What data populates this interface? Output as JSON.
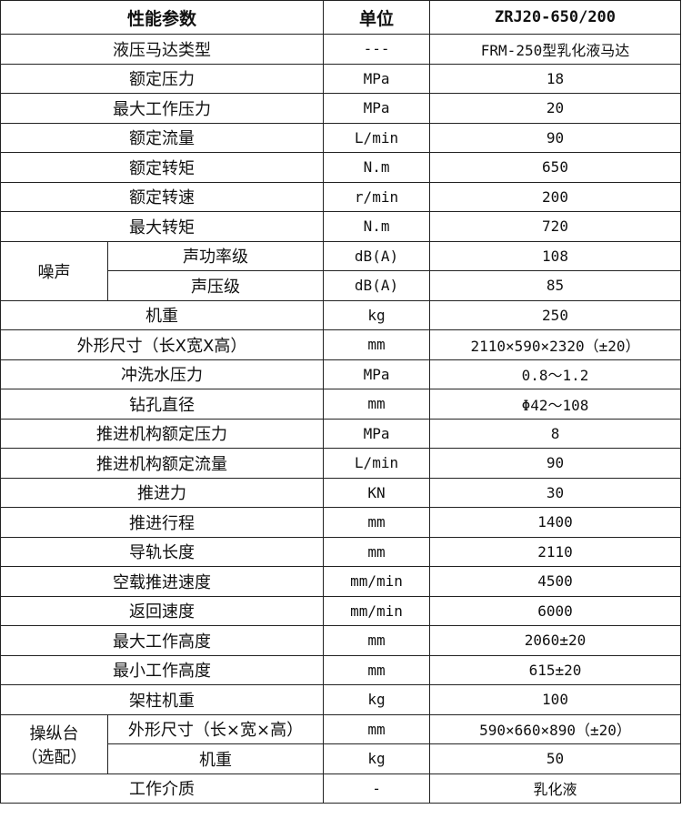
{
  "header": {
    "param": "性能参数",
    "unit": "单位",
    "model": "ZRJ20-650/200"
  },
  "rows": [
    {
      "name": "液压马达类型",
      "unit": "---",
      "value": "FRM-250型乳化液马达"
    },
    {
      "name": "额定压力",
      "unit": "MPa",
      "value": "18"
    },
    {
      "name": "最大工作压力",
      "unit": "MPa",
      "value": "20"
    },
    {
      "name": "额定流量",
      "unit": "L/min",
      "value": "90"
    },
    {
      "name": "额定转矩",
      "unit": "N.m",
      "value": "650"
    },
    {
      "name": "额定转速",
      "unit": "r/min",
      "value": "200"
    },
    {
      "name": "最大转矩",
      "unit": "N.m",
      "value": "720"
    }
  ],
  "noise": {
    "group": "噪声",
    "rows": [
      {
        "name": "声功率级",
        "unit": "dB(A)",
        "value": "108"
      },
      {
        "name": "声压级",
        "unit": "dB(A)",
        "value": "85"
      }
    ]
  },
  "rows2": [
    {
      "name": "机重",
      "unit": "kg",
      "value": "250"
    },
    {
      "name": "外形尺寸（长X宽X高）",
      "unit": "mm",
      "value": "2110×590×2320（±20）"
    },
    {
      "name": "冲洗水压力",
      "unit": "MPa",
      "value": "0.8～1.2"
    },
    {
      "name": "钻孔直径",
      "unit": "mm",
      "value": "Φ42～108"
    },
    {
      "name": "推进机构额定压力",
      "unit": "MPa",
      "value": "8"
    },
    {
      "name": "推进机构额定流量",
      "unit": "L/min",
      "value": "90"
    },
    {
      "name": "推进力",
      "unit": "KN",
      "value": "30"
    },
    {
      "name": "推进行程",
      "unit": "mm",
      "value": "1400"
    },
    {
      "name": "导轨长度",
      "unit": "mm",
      "value": "2110"
    },
    {
      "name": "空载推进速度",
      "unit": "mm/min",
      "value": "4500"
    },
    {
      "name": "返回速度",
      "unit": "mm/min",
      "value": "6000"
    },
    {
      "name": "最大工作高度",
      "unit": "mm",
      "value": "2060±20"
    },
    {
      "name": "最小工作高度",
      "unit": "mm",
      "value": "615±20"
    },
    {
      "name": "架柱机重",
      "unit": "kg",
      "value": "100"
    }
  ],
  "console": {
    "group_line1": "操纵台",
    "group_line2": "（选配）",
    "rows": [
      {
        "name": "外形尺寸（长×宽×高）",
        "unit": "mm",
        "value": "590×660×890（±20）"
      },
      {
        "name": "机重",
        "unit": "kg",
        "value": "50"
      }
    ]
  },
  "last": {
    "name": "工作介质",
    "unit": "-",
    "value": "乳化液"
  }
}
